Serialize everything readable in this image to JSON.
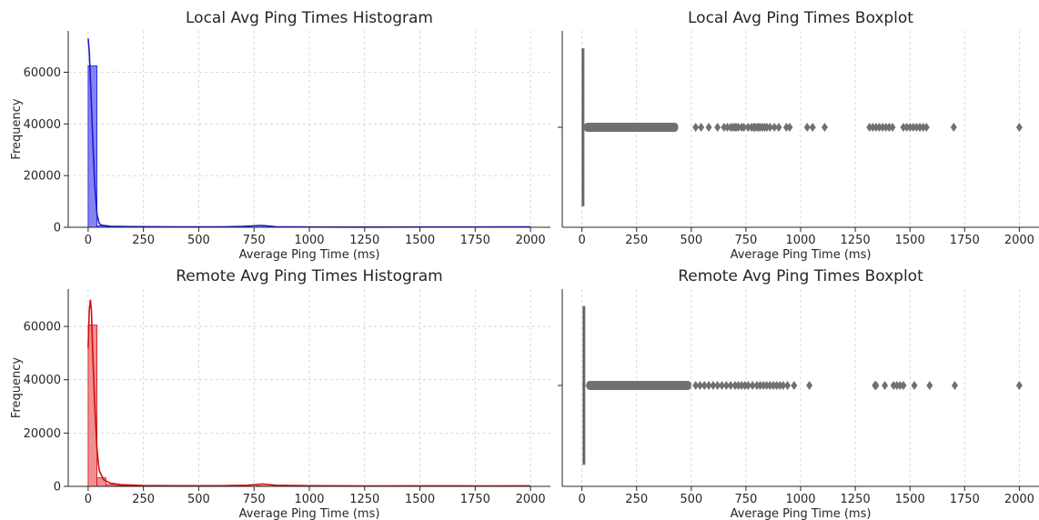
{
  "chart_data": [
    {
      "type": "histogram",
      "title": "Local Avg Ping Times Histogram",
      "xlabel": "Average Ping Time (ms)",
      "ylabel": "Frequency",
      "xlim": [
        -90,
        2090
      ],
      "ylim": [
        0,
        76000
      ],
      "xticks": [
        0,
        250,
        500,
        750,
        1000,
        1250,
        1500,
        1750,
        2000
      ],
      "yticks": [
        0,
        20000,
        40000,
        60000
      ],
      "grid": true,
      "color": "#1a1ad6",
      "fill": "#6f6fee",
      "bins": [
        {
          "x0": 0,
          "x1": 40,
          "count": 62500
        },
        {
          "x0": 40,
          "x1": 80,
          "count": 600
        },
        {
          "x0": 80,
          "x1": 120,
          "count": 250
        },
        {
          "x0": 120,
          "x1": 160,
          "count": 150
        },
        {
          "x0": 160,
          "x1": 200,
          "count": 100
        },
        {
          "x0": 760,
          "x1": 800,
          "count": 120
        },
        {
          "x0": 800,
          "x1": 840,
          "count": 80
        }
      ],
      "kde": [
        [
          0,
          73000
        ],
        [
          5,
          68000
        ],
        [
          10,
          58000
        ],
        [
          20,
          36000
        ],
        [
          30,
          16000
        ],
        [
          40,
          5000
        ],
        [
          50,
          1500
        ],
        [
          60,
          800
        ],
        [
          100,
          400
        ],
        [
          200,
          250
        ],
        [
          400,
          150
        ],
        [
          600,
          180
        ],
        [
          700,
          300
        ],
        [
          780,
          700
        ],
        [
          800,
          600
        ],
        [
          850,
          200
        ],
        [
          1000,
          120
        ],
        [
          1250,
          80
        ],
        [
          1500,
          100
        ],
        [
          1750,
          90
        ],
        [
          2000,
          150
        ]
      ]
    },
    {
      "type": "boxplot",
      "title": "Local Avg Ping Times Boxplot",
      "xlabel": "Average Ping Time (ms)",
      "xlim": [
        -90,
        2090
      ],
      "xticks": [
        0,
        250,
        500,
        750,
        1000,
        1250,
        1500,
        1750,
        2000
      ],
      "grid": true,
      "color": "#707070",
      "box": {
        "q1": 1,
        "median": 2,
        "q3": 4,
        "whisker_low": 0,
        "whisker_high": 9
      },
      "outlier_band": [
        9,
        440
      ],
      "outliers": [
        520,
        545,
        580,
        620,
        650,
        665,
        680,
        690,
        700,
        705,
        715,
        730,
        740,
        760,
        775,
        785,
        790,
        800,
        808,
        815,
        825,
        835,
        845,
        860,
        880,
        900,
        935,
        950,
        1030,
        1055,
        1110,
        1315,
        1330,
        1345,
        1360,
        1375,
        1390,
        1405,
        1420,
        1470,
        1485,
        1500,
        1515,
        1530,
        1545,
        1560,
        1575,
        1700,
        2000
      ]
    },
    {
      "type": "histogram",
      "title": "Remote Avg Ping Times Histogram",
      "xlabel": "Average Ping Time (ms)",
      "ylabel": "Frequency",
      "xlim": [
        -90,
        2090
      ],
      "ylim": [
        0,
        74000
      ],
      "xticks": [
        0,
        250,
        500,
        750,
        1000,
        1250,
        1500,
        1750,
        2000
      ],
      "yticks": [
        0,
        20000,
        40000,
        60000
      ],
      "grid": true,
      "color": "#d01010",
      "fill": "#ef7b7b",
      "bins": [
        {
          "x0": 0,
          "x1": 40,
          "count": 60500
        },
        {
          "x0": 40,
          "x1": 80,
          "count": 3200
        },
        {
          "x0": 80,
          "x1": 120,
          "count": 700
        },
        {
          "x0": 120,
          "x1": 160,
          "count": 300
        },
        {
          "x0": 160,
          "x1": 200,
          "count": 200
        },
        {
          "x0": 200,
          "x1": 240,
          "count": 120
        },
        {
          "x0": 760,
          "x1": 800,
          "count": 150
        },
        {
          "x0": 800,
          "x1": 840,
          "count": 100
        }
      ],
      "kde": [
        [
          0,
          52000
        ],
        [
          5,
          66000
        ],
        [
          10,
          70000
        ],
        [
          15,
          66000
        ],
        [
          20,
          52000
        ],
        [
          30,
          30000
        ],
        [
          40,
          14000
        ],
        [
          50,
          6000
        ],
        [
          70,
          2500
        ],
        [
          100,
          1200
        ],
        [
          150,
          600
        ],
        [
          250,
          350
        ],
        [
          400,
          250
        ],
        [
          600,
          250
        ],
        [
          720,
          400
        ],
        [
          790,
          900
        ],
        [
          850,
          400
        ],
        [
          1000,
          250
        ],
        [
          1250,
          180
        ],
        [
          1500,
          200
        ],
        [
          1750,
          180
        ],
        [
          2000,
          200
        ]
      ]
    },
    {
      "type": "boxplot",
      "title": "Remote Avg Ping Times Boxplot",
      "xlabel": "Average Ping Time (ms)",
      "xlim": [
        -90,
        2090
      ],
      "xticks": [
        0,
        250,
        500,
        750,
        1000,
        1250,
        1500,
        1750,
        2000
      ],
      "grid": true,
      "color": "#707070",
      "box": {
        "q1": 5,
        "median": 8,
        "q3": 12,
        "whisker_low": 0,
        "whisker_high": 20
      },
      "outlier_band": [
        20,
        500
      ],
      "outliers": [
        520,
        540,
        560,
        580,
        600,
        620,
        640,
        660,
        680,
        700,
        715,
        730,
        745,
        760,
        780,
        800,
        815,
        830,
        845,
        860,
        875,
        890,
        905,
        920,
        940,
        970,
        1040,
        1340,
        1345,
        1385,
        1425,
        1440,
        1455,
        1470,
        1520,
        1590,
        1705,
        2000
      ]
    }
  ]
}
